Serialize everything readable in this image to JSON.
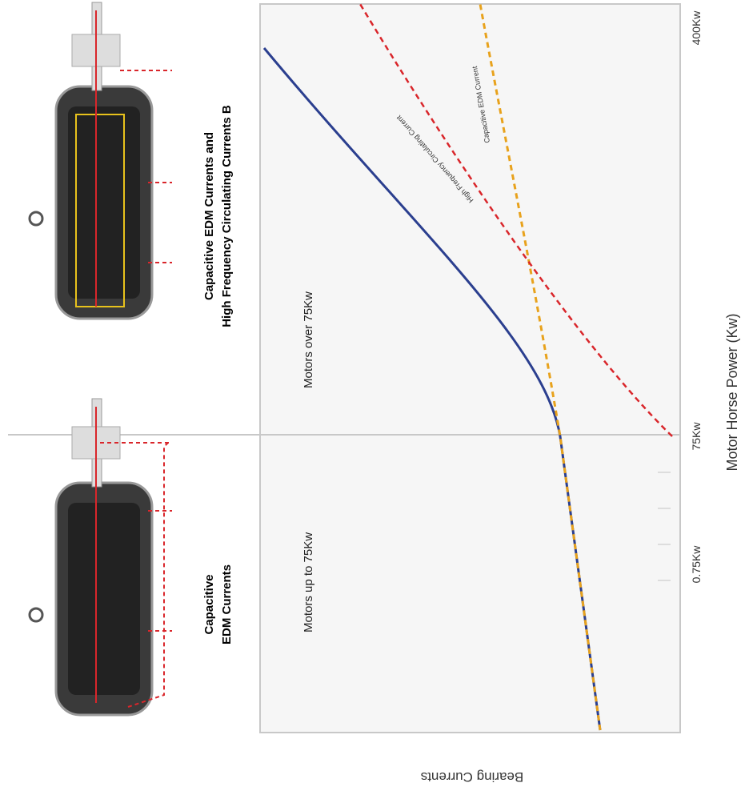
{
  "header": {
    "left_title": [
      "Capacitive",
      "EDM Currents"
    ],
    "right_title": [
      "Capacitive EDM Currents and",
      "High Frequency Circulating Currents B"
    ]
  },
  "regions": [
    "Motors up to 75Kw",
    "Motors over 75Kw"
  ],
  "x_axis": {
    "label": "Motor Horse Power (Kw)",
    "ticks": [
      "0.75Kw",
      "75Kw",
      "400Kw"
    ]
  },
  "y_axis": {
    "label": "Bearing Currents"
  },
  "curve_labels": [
    "High Frequency Circulating Current",
    "Capacitive EDM Current"
  ]
}
